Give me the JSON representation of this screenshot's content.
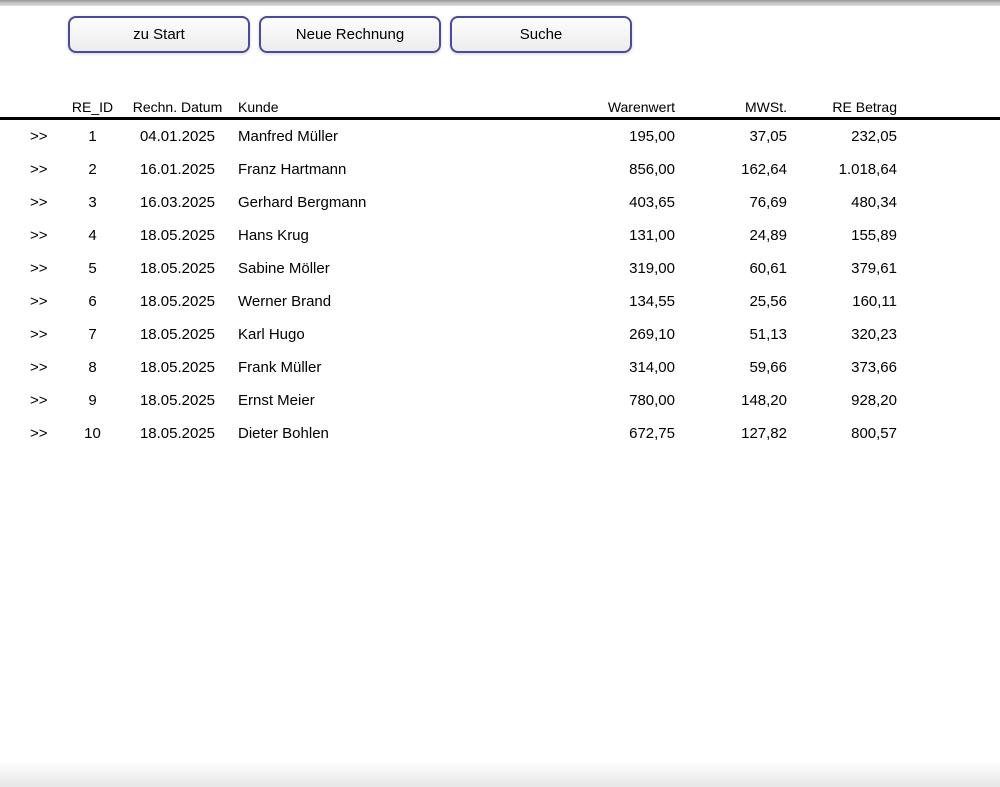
{
  "toolbar": {
    "buttons": [
      {
        "label": "zu Start"
      },
      {
        "label": "Neue Rechnung"
      },
      {
        "label": "Suche"
      }
    ]
  },
  "table": {
    "row_link_label": ">>",
    "columns": {
      "re_id": "RE_ID",
      "datum": "Rechn. Datum",
      "kunde": "Kunde",
      "warenwert": "Warenwert",
      "mwst": "MWSt.",
      "re_betrag": "RE Betrag"
    },
    "rows": [
      {
        "re_id": "1",
        "datum": "04.01.2025",
        "kunde": "Manfred Müller",
        "warenwert": "195,00",
        "mwst": "37,05",
        "re_betrag": "232,05"
      },
      {
        "re_id": "2",
        "datum": "16.01.2025",
        "kunde": "Franz Hartmann",
        "warenwert": "856,00",
        "mwst": "162,64",
        "re_betrag": "1.018,64"
      },
      {
        "re_id": "3",
        "datum": "16.03.2025",
        "kunde": "Gerhard Bergmann",
        "warenwert": "403,65",
        "mwst": "76,69",
        "re_betrag": "480,34"
      },
      {
        "re_id": "4",
        "datum": "18.05.2025",
        "kunde": "Hans Krug",
        "warenwert": "131,00",
        "mwst": "24,89",
        "re_betrag": "155,89"
      },
      {
        "re_id": "5",
        "datum": "18.05.2025",
        "kunde": "Sabine Möller",
        "warenwert": "319,00",
        "mwst": "60,61",
        "re_betrag": "379,61"
      },
      {
        "re_id": "6",
        "datum": "18.05.2025",
        "kunde": "Werner Brand",
        "warenwert": "134,55",
        "mwst": "25,56",
        "re_betrag": "160,11"
      },
      {
        "re_id": "7",
        "datum": "18.05.2025",
        "kunde": "Karl Hugo",
        "warenwert": "269,10",
        "mwst": "51,13",
        "re_betrag": "320,23"
      },
      {
        "re_id": "8",
        "datum": "18.05.2025",
        "kunde": "Frank Müller",
        "warenwert": "314,00",
        "mwst": "59,66",
        "re_betrag": "373,66"
      },
      {
        "re_id": "9",
        "datum": "18.05.2025",
        "kunde": "Ernst Meier",
        "warenwert": "780,00",
        "mwst": "148,20",
        "re_betrag": "928,20"
      },
      {
        "re_id": "10",
        "datum": "18.05.2025",
        "kunde": "Dieter Bohlen",
        "warenwert": "672,75",
        "mwst": "127,82",
        "re_betrag": "800,57"
      }
    ]
  },
  "colors": {
    "button_border": "#4a4a9f",
    "header_rule": "#000000",
    "top_bar": "#bfbfbf"
  }
}
